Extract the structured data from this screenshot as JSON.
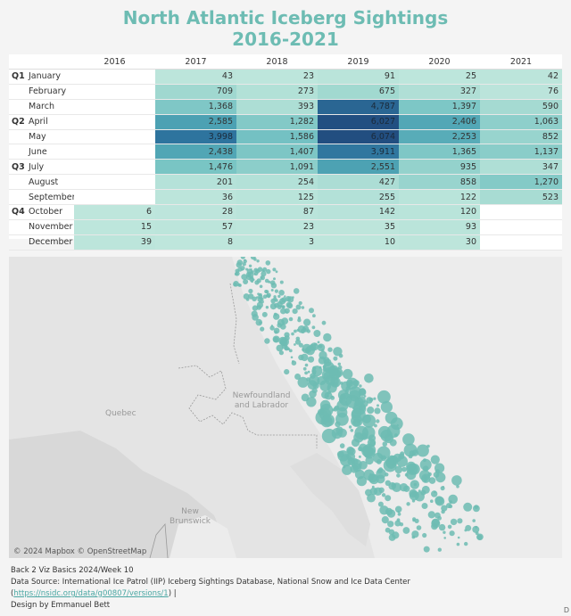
{
  "title_line1": "North Atlantic Iceberg Sightings",
  "title_line2": "2016-2021",
  "chart_data": [
    {
      "type": "heatmap",
      "columns": [
        "2016",
        "2017",
        "2018",
        "2019",
        "2020",
        "2021"
      ],
      "rows": [
        {
          "quarter": "Q1",
          "month": "January",
          "values": [
            null,
            43,
            23,
            91,
            25,
            42
          ]
        },
        {
          "quarter": "",
          "month": "February",
          "values": [
            null,
            709,
            273,
            675,
            327,
            76
          ]
        },
        {
          "quarter": "",
          "month": "March",
          "values": [
            null,
            1368,
            393,
            4787,
            1397,
            590
          ]
        },
        {
          "quarter": "Q2",
          "month": "April",
          "values": [
            null,
            2585,
            1282,
            6027,
            2406,
            1063
          ]
        },
        {
          "quarter": "",
          "month": "May",
          "values": [
            null,
            3998,
            1586,
            6074,
            2253,
            852
          ]
        },
        {
          "quarter": "",
          "month": "June",
          "values": [
            null,
            2438,
            1407,
            3911,
            1365,
            1137
          ]
        },
        {
          "quarter": "Q3",
          "month": "July",
          "values": [
            null,
            1476,
            1091,
            2551,
            935,
            347
          ]
        },
        {
          "quarter": "",
          "month": "August",
          "values": [
            null,
            201,
            254,
            427,
            858,
            1270
          ]
        },
        {
          "quarter": "",
          "month": "September",
          "values": [
            null,
            36,
            125,
            255,
            122,
            523
          ]
        },
        {
          "quarter": "Q4",
          "month": "October",
          "values": [
            6,
            28,
            87,
            142,
            120,
            null
          ]
        },
        {
          "quarter": "",
          "month": "November",
          "values": [
            15,
            57,
            23,
            35,
            93,
            null
          ]
        },
        {
          "quarter": "",
          "month": "December",
          "values": [
            39,
            8,
            3,
            10,
            30,
            null
          ]
        }
      ]
    },
    {
      "type": "scatter",
      "description_source": "map",
      "labels": [
        "Quebec",
        "Newfoundland and Labrador",
        "New Brunswick"
      ]
    }
  ],
  "map": {
    "labels": [
      "Quebec",
      "Newfoundland\nand Labrador",
      "New\nBrunswick"
    ],
    "attribution": "© 2024 Mapbox © OpenStreetMap",
    "dot_color": "#6dbcb3"
  },
  "footer": {
    "line1": "Back 2 Viz Basics 2024/Week 10",
    "line2_pre": "Data Source: International Ice Patrol (IIP) Iceberg Sightings Database, National Snow and Ice Data Center (",
    "link": "https://nsidc.org/data/g00807/versions/1",
    "line2_post": ")  |",
    "line3": "Design by Emmanuel Bett",
    "corner": "D"
  }
}
